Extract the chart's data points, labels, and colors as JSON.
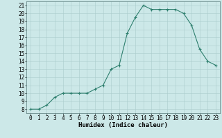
{
  "x": [
    0,
    1,
    2,
    3,
    4,
    5,
    6,
    7,
    8,
    9,
    10,
    11,
    12,
    13,
    14,
    15,
    16,
    17,
    18,
    19,
    20,
    21,
    22,
    23
  ],
  "y": [
    8,
    8,
    8.5,
    9.5,
    10,
    10,
    10,
    10,
    10.5,
    11,
    13,
    13.5,
    17.5,
    19.5,
    21,
    20.5,
    20.5,
    20.5,
    20.5,
    20,
    18.5,
    15.5,
    14,
    13.5
  ],
  "xlabel": "Humidex (Indice chaleur)",
  "xlim": [
    -0.5,
    23.5
  ],
  "ylim": [
    7.5,
    21.5
  ],
  "yticks": [
    8,
    9,
    10,
    11,
    12,
    13,
    14,
    15,
    16,
    17,
    18,
    19,
    20,
    21
  ],
  "xticks": [
    0,
    1,
    2,
    3,
    4,
    5,
    6,
    7,
    8,
    9,
    10,
    11,
    12,
    13,
    14,
    15,
    16,
    17,
    18,
    19,
    20,
    21,
    22,
    23
  ],
  "line_color": "#2e7f6e",
  "marker": "+",
  "bg_color": "#cce8e8",
  "grid_color": "#aacccc",
  "label_fontsize": 6.5,
  "tick_fontsize": 5.5,
  "marker_size": 3,
  "linewidth": 0.8
}
